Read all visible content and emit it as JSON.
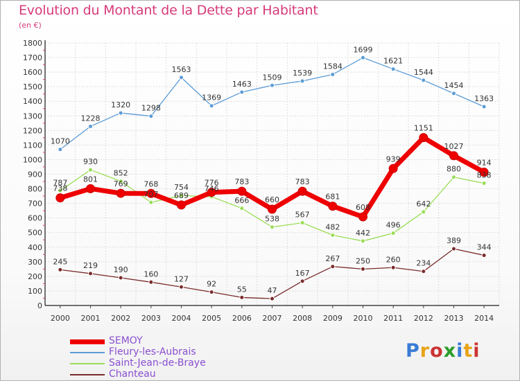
{
  "header": {
    "title": "Evolution du Montant de la Dette par Habitant",
    "subtitle": "(en €)"
  },
  "brand": {
    "text": "Proxiti"
  },
  "colors": {
    "title": "#d63a7a",
    "legend_text": "#8a4fd0",
    "grid": "#dddddd",
    "axis": "#444444"
  },
  "chart_data": {
    "type": "line",
    "title": "Evolution du Montant de la Dette par Habitant",
    "subtitle": "(en €)",
    "x": [
      "2000",
      "2001",
      "2002",
      "2003",
      "2004",
      "2005",
      "2006",
      "2007",
      "2008",
      "2009",
      "2010",
      "2011",
      "2012",
      "2013",
      "2014"
    ],
    "ylim": [
      0,
      1800
    ],
    "yticks": [
      0,
      100,
      200,
      300,
      400,
      500,
      600,
      700,
      800,
      900,
      1000,
      1100,
      1200,
      1300,
      1400,
      1500,
      1600,
      1700,
      1800
    ],
    "grid": true,
    "legend_position": "bottom-left",
    "series": [
      {
        "name": "SEMOY",
        "color": "#ee0000",
        "width": 7,
        "marker": 6,
        "values": [
          738,
          801,
          769,
          768,
          689,
          776,
          783,
          660,
          783,
          681,
          608,
          939,
          1151,
          1027,
          914
        ]
      },
      {
        "name": "Fleury-les-Aubrais",
        "color": "#5b9bd5",
        "width": 1.3,
        "marker": 3,
        "values": [
          1070,
          1228,
          1320,
          1298,
          1563,
          1369,
          1463,
          1509,
          1539,
          1584,
          1699,
          1621,
          1544,
          1454,
          1363
        ]
      },
      {
        "name": "Saint-Jean-de-Braye",
        "color": "#99dd55",
        "width": 1.3,
        "marker": 3,
        "values": [
          787,
          930,
          852,
          707,
          754,
          746,
          666,
          538,
          567,
          482,
          442,
          496,
          642,
          880,
          838
        ]
      },
      {
        "name": "Chanteau",
        "color": "#7a2a2a",
        "width": 1.3,
        "marker": 3,
        "values": [
          245,
          219,
          190,
          160,
          127,
          92,
          55,
          47,
          167,
          267,
          250,
          260,
          234,
          389,
          344
        ]
      }
    ]
  }
}
